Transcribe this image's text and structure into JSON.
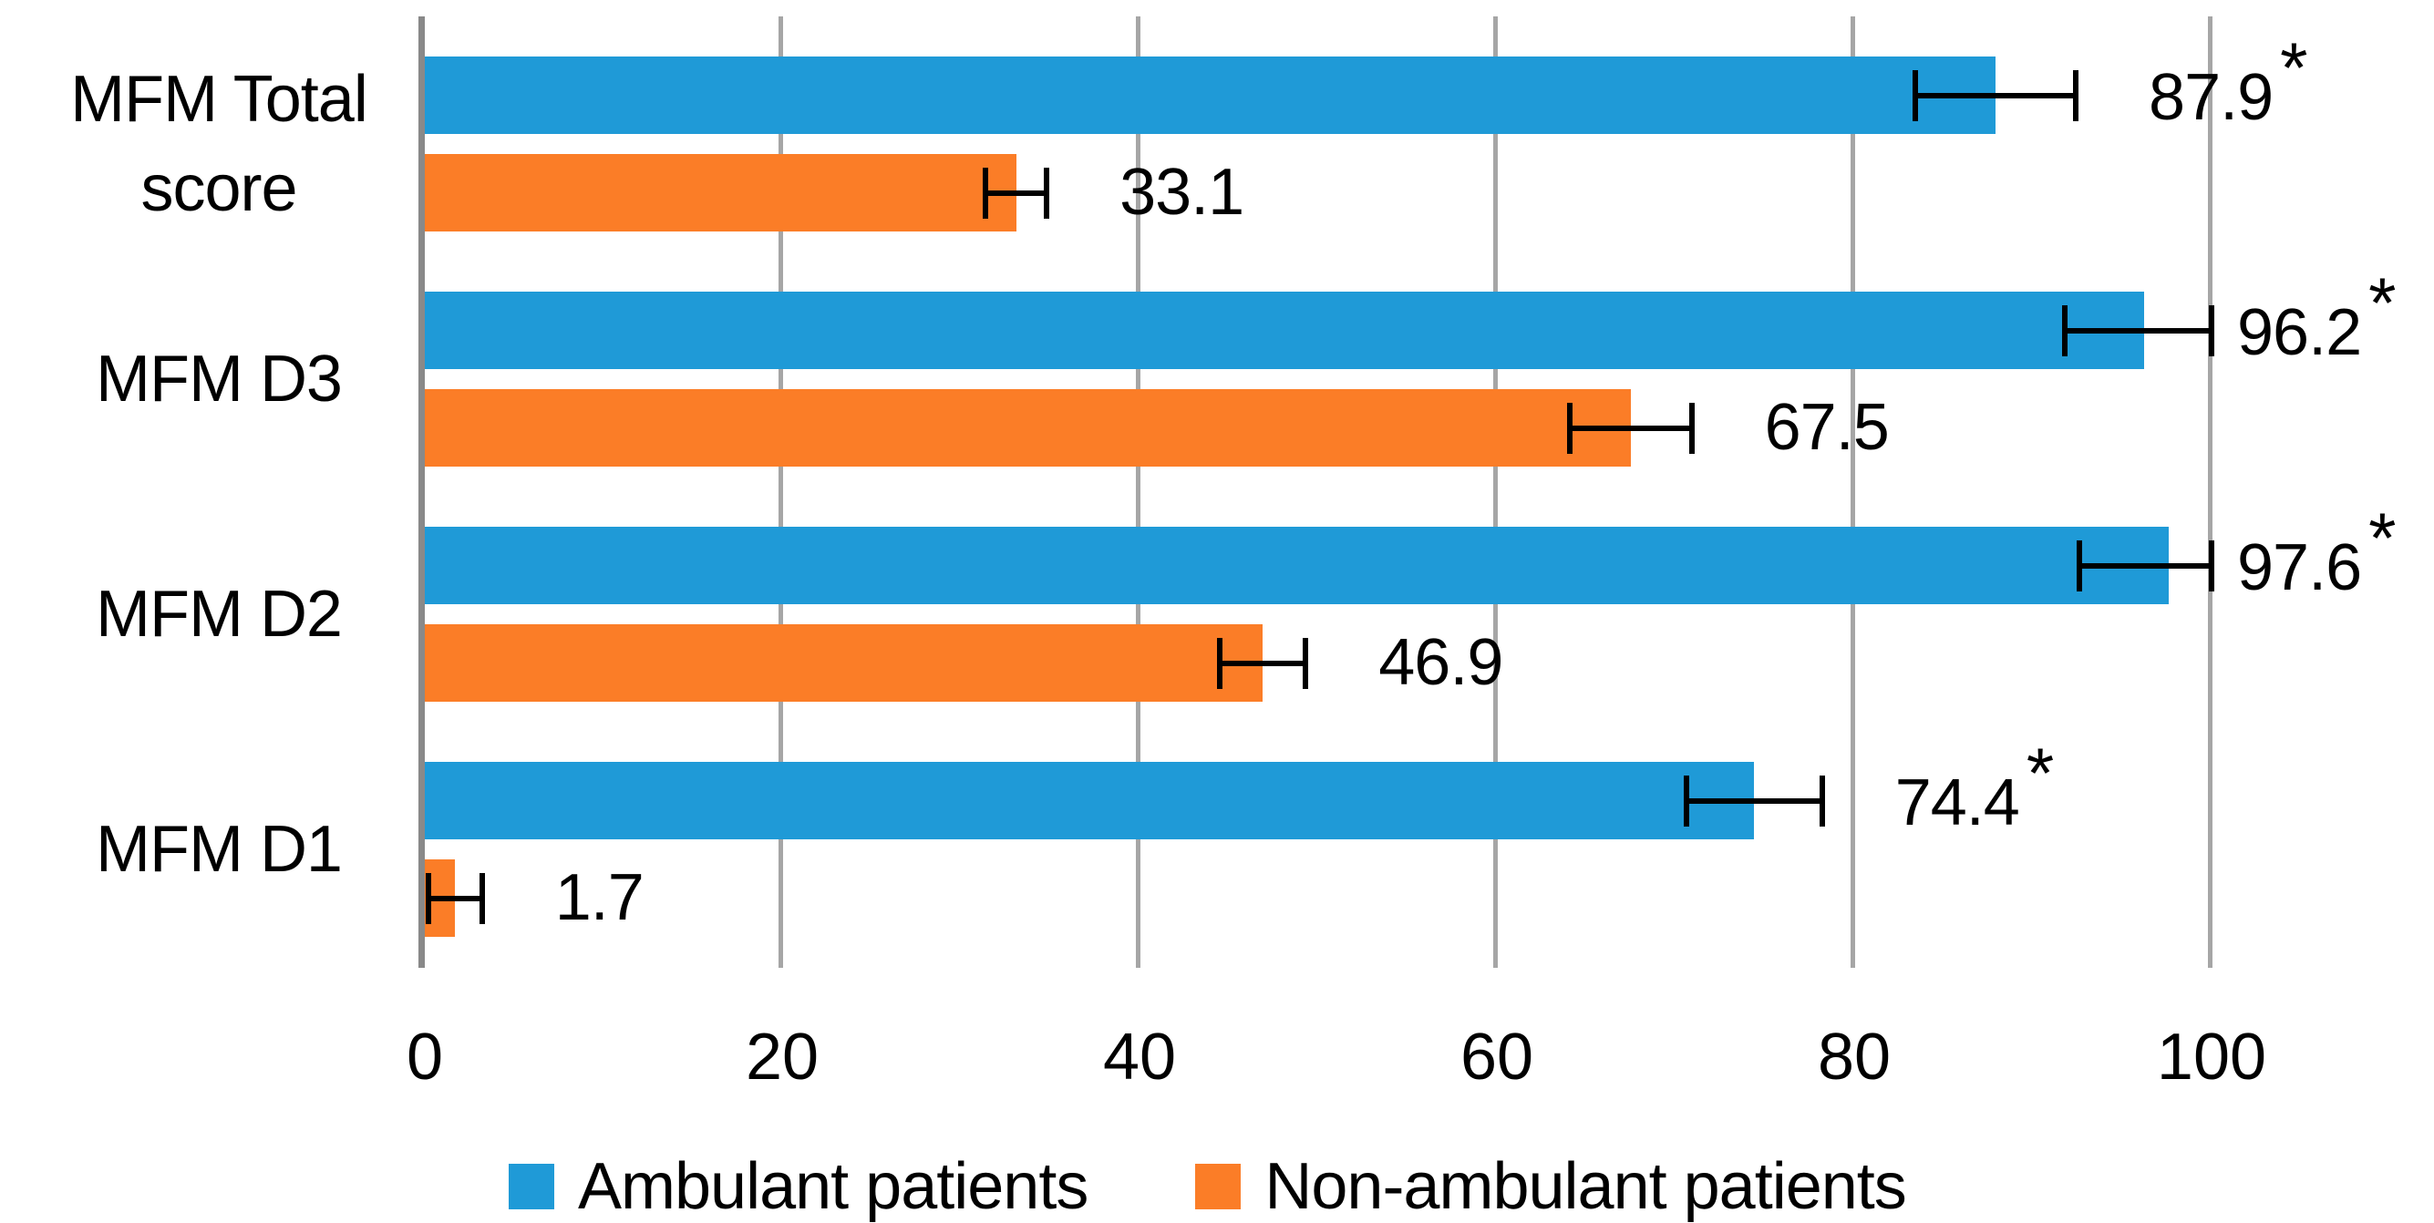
{
  "chart_data": {
    "type": "bar",
    "orientation": "horizontal",
    "title": "",
    "categories": [
      "MFM Total score",
      "MFM D3",
      "MFM D2",
      "MFM D1"
    ],
    "series": [
      {
        "name": "Ambulant patients",
        "color": "#1F9AD7",
        "values": [
          87.9,
          96.2,
          97.6,
          74.4
        ],
        "error_sd": [
          4.5,
          4.4,
          5.0,
          3.8
        ],
        "data_labels": [
          "87.9*",
          "96.2*",
          "97.6*",
          "74.4*"
        ]
      },
      {
        "name": "Non-ambulant patients",
        "color": "#FB7D27",
        "values": [
          33.1,
          67.5,
          46.9,
          1.7
        ],
        "error_sd": [
          1.7,
          3.4,
          2.4,
          1.5
        ],
        "data_labels": [
          "33.1",
          "67.5",
          "46.9",
          "1.7"
        ]
      }
    ],
    "x_axis": {
      "min": 0,
      "max": 100,
      "tick_labels": [
        "0",
        "20",
        "40",
        "60",
        "80",
        "100"
      ],
      "tick_values": [
        0,
        20,
        40,
        60,
        80,
        100
      ]
    },
    "error_bars": {
      "type": "sd",
      "clip_min": 0,
      "clip_max": 100,
      "color": "#000000"
    },
    "significance_marker": "*",
    "legend": {
      "position": "bottom",
      "items": [
        {
          "label": "Ambulant patients",
          "color": "#1F9AD7"
        },
        {
          "label": "Non-ambulant patients",
          "color": "#FB7D27"
        }
      ]
    },
    "style": {
      "gridline_color": "#A6A6A6",
      "axis_line_color": "#898989",
      "background": "#FFFFFF",
      "grid_on": true
    }
  }
}
